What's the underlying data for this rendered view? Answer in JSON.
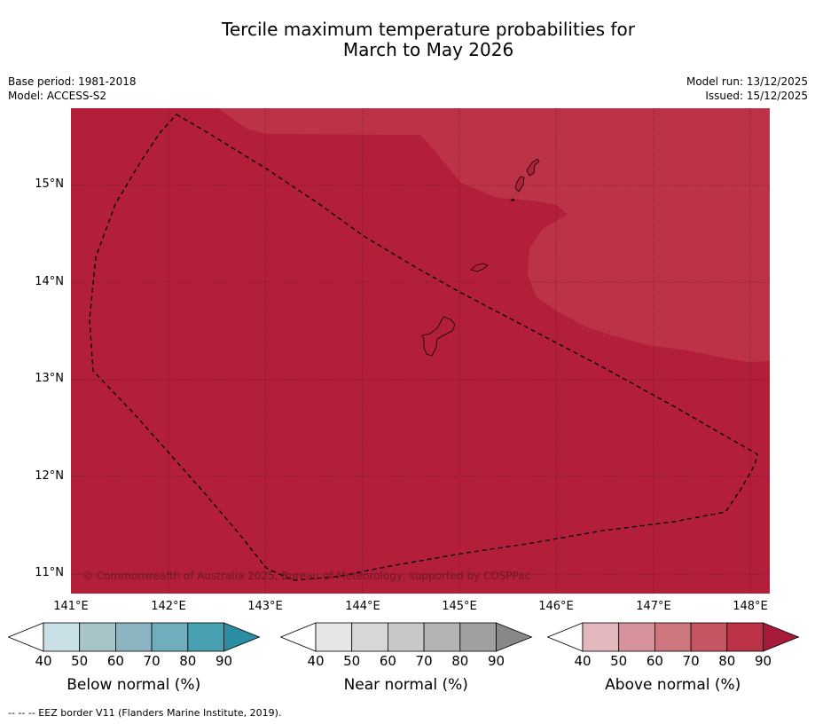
{
  "title_line1": "Tercile maximum temperature probabilities for",
  "title_line2": "March to May 2026",
  "meta_left": {
    "base_period": "Base period: 1981-2018",
    "model": "Model: ACCESS-S2"
  },
  "meta_right": {
    "model_run": "Model run: 13/12/2025",
    "issued": "Issued: 15/12/2025"
  },
  "map": {
    "lon_range": [
      141,
      148.2
    ],
    "lat_range": [
      10.8,
      15.8
    ],
    "lon_ticks": [
      "141°E",
      "142°E",
      "143°E",
      "144°E",
      "145°E",
      "146°E",
      "147°E",
      "148°E"
    ],
    "lat_ticks": [
      "15°N",
      "14°N",
      "13°N",
      "12°N",
      "11°N"
    ],
    "fill_color_80_90": "#b31e3a",
    "fill_color_70_80": "#bc3348",
    "copyright": "© Commonwealth of Australia 2025, Bureau of Meteorology, supported by COSPPac"
  },
  "colorbars": [
    {
      "label": "Below normal (%)",
      "ticks": [
        "40",
        "50",
        "60",
        "70",
        "80",
        "90"
      ],
      "colors": [
        "#c8e0e5",
        "#a7c4c9",
        "#8ab5c0",
        "#6faebd",
        "#48a0b2",
        "#2a8ea2"
      ]
    },
    {
      "label": "Near normal (%)",
      "ticks": [
        "40",
        "50",
        "60",
        "70",
        "80",
        "90"
      ],
      "colors": [
        "#e6e6e6",
        "#d7d7d7",
        "#c8c8c8",
        "#b4b4b4",
        "#a0a0a0",
        "#888888"
      ]
    },
    {
      "label": "Above normal (%)",
      "ticks": [
        "40",
        "50",
        "60",
        "70",
        "80",
        "90"
      ],
      "colors": [
        "#e2b8bd",
        "#d6939b",
        "#ce767e",
        "#c65563",
        "#bc3348",
        "#a81a3a"
      ]
    }
  ],
  "footnote": "--  --  -- EEZ border V11 (Flanders Marine Institute, 2019)."
}
